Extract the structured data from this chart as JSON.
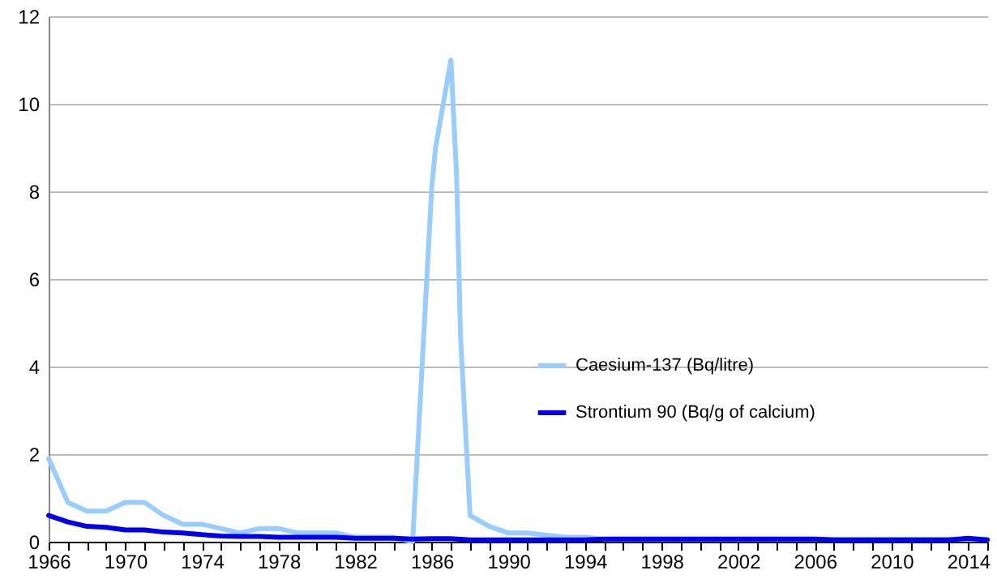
{
  "chart_data": {
    "type": "line",
    "x": [
      1966,
      1967,
      1968,
      1969,
      1970,
      1971,
      1972,
      1973,
      1974,
      1975,
      1976,
      1977,
      1978,
      1979,
      1980,
      1981,
      1982,
      1983,
      1984,
      1985,
      1986,
      1987,
      1988,
      1989,
      1990,
      1991,
      1992,
      1993,
      1994,
      1995,
      1996,
      1997,
      1998,
      1999,
      2000,
      2001,
      2002,
      2003,
      2004,
      2005,
      2006,
      2007,
      2008,
      2009,
      2010,
      2011,
      2012,
      2013,
      2014,
      2015
    ],
    "series": [
      {
        "name": "Caesium-137 (Bq/litre)",
        "color": "#99ccff",
        "x": [
          1966,
          1967,
          1968,
          1969,
          1970,
          1971,
          1972,
          1973,
          1974,
          1975,
          1976,
          1977,
          1978,
          1979,
          1980,
          1981,
          1982,
          1983,
          1984,
          1985,
          1986,
          1986.2,
          1987,
          1987.3,
          1987.5,
          1988,
          1989,
          1990,
          1991,
          1992,
          1993,
          1994,
          1995,
          1996,
          1997,
          1998,
          1999,
          2000,
          2001,
          2002,
          2003,
          2004,
          2005,
          2006,
          2007,
          2008,
          2009,
          2010,
          2011,
          2012,
          2013,
          2014,
          2015
        ],
        "values": [
          1.9,
          0.9,
          0.7,
          0.7,
          0.9,
          0.9,
          0.6,
          0.4,
          0.4,
          0.3,
          0.2,
          0.3,
          0.3,
          0.2,
          0.2,
          0.2,
          0.1,
          0.1,
          0.1,
          0,
          8.1,
          9,
          11,
          8.3,
          4.7,
          0.6,
          0.35,
          0.2,
          0.2,
          0.15,
          0.1,
          0.1,
          0.05,
          0.05,
          0.05,
          0.05,
          0.05,
          0.05,
          0.05,
          0.05,
          0.05,
          0.05,
          0.05,
          0.05,
          0.05,
          0.05,
          0.05,
          0.05,
          0.05,
          0.05,
          0.05,
          0.05,
          0.05
        ]
      },
      {
        "name": "Strontium 90 (Bq/g of calcium)",
        "color": "#0000ee",
        "values": [
          0.6,
          0.45,
          0.35,
          0.33,
          0.27,
          0.27,
          0.22,
          0.2,
          0.16,
          0.13,
          0.12,
          0.12,
          0.1,
          0.1,
          0.1,
          0.1,
          0.08,
          0.08,
          0.08,
          0.06,
          0.07,
          0.07,
          0.04,
          0.04,
          0.04,
          0.04,
          0.04,
          0.04,
          0.04,
          0.06,
          0.06,
          0.06,
          0.06,
          0.06,
          0.06,
          0.06,
          0.06,
          0.06,
          0.06,
          0.06,
          0.06,
          0.04,
          0.04,
          0.04,
          0.04,
          0.04,
          0.04,
          0.04,
          0.08,
          0.04
        ]
      }
    ],
    "xlim": [
      1966,
      2015
    ],
    "xticks": [
      1966,
      {
        "value": 1967,
        "label": null
      },
      {
        "value": 1968,
        "label": null
      },
      {
        "value": 1969,
        "label": null
      },
      1970,
      {
        "value": 1971,
        "label": null
      },
      {
        "value": 1972,
        "label": null
      },
      {
        "value": 1973,
        "label": null
      },
      1974,
      {
        "value": 1975,
        "label": null
      },
      {
        "value": 1976,
        "label": null
      },
      {
        "value": 1977,
        "label": null
      },
      1978,
      {
        "value": 1979,
        "label": null
      },
      {
        "value": 1980,
        "label": null
      },
      {
        "value": 1981,
        "label": null
      },
      1982,
      {
        "value": 1983,
        "label": null
      },
      {
        "value": 1984,
        "label": null
      },
      {
        "value": 1985,
        "label": null
      },
      1986,
      {
        "value": 1987,
        "label": null
      },
      {
        "value": 1988,
        "label": null
      },
      {
        "value": 1989,
        "label": null
      },
      1990,
      {
        "value": 1991,
        "label": null
      },
      {
        "value": 1992,
        "label": null
      },
      {
        "value": 1993,
        "label": null
      },
      1994,
      {
        "value": 1995,
        "label": null
      },
      {
        "value": 1996,
        "label": null
      },
      {
        "value": 1997,
        "label": null
      },
      1998,
      {
        "value": 1999,
        "label": null
      },
      {
        "value": 2000,
        "label": null
      },
      {
        "value": 2001,
        "label": null
      },
      2002,
      {
        "value": 2003,
        "label": null
      },
      {
        "value": 2004,
        "label": null
      },
      {
        "value": 2005,
        "label": null
      },
      2006,
      {
        "value": 2007,
        "label": null
      },
      {
        "value": 2008,
        "label": null
      },
      {
        "value": 2009,
        "label": null
      },
      2010,
      {
        "value": 2011,
        "label": null
      },
      {
        "value": 2012,
        "label": null
      },
      {
        "value": 2013,
        "label": null
      },
      2014,
      {
        "value": 2015,
        "label": null
      }
    ],
    "ylim": [
      0,
      12
    ],
    "yticks": [
      0,
      2,
      4,
      6,
      8,
      10,
      12
    ],
    "grid": "y",
    "legend": "right",
    "marker": "none",
    "line_style": "solid"
  }
}
